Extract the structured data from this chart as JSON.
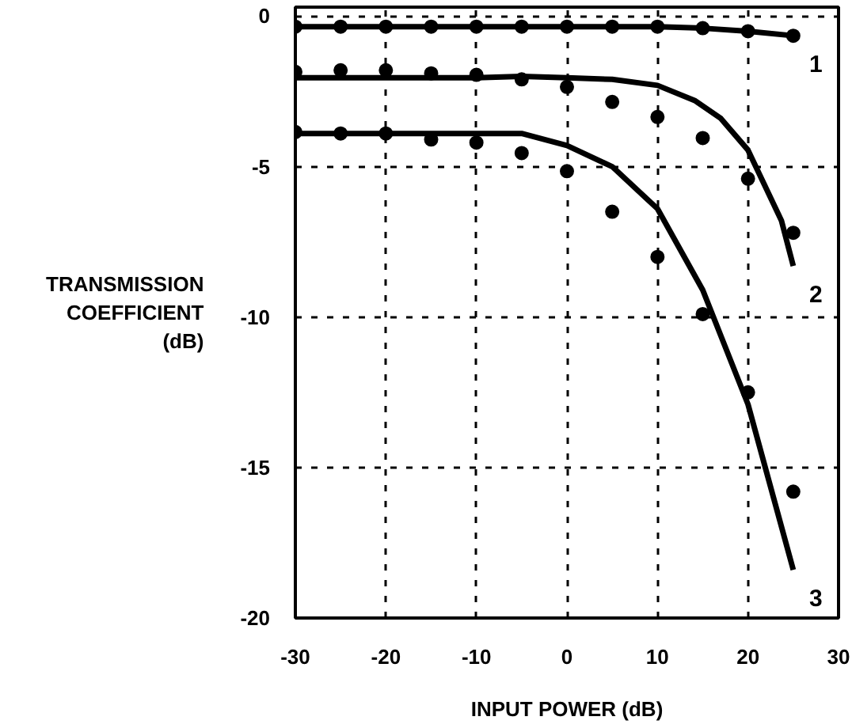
{
  "chart_data": {
    "type": "line",
    "xlabel": "INPUT POWER (dB)",
    "ylabel": "TRANSMISSION COEFFICIENT (dB)",
    "xlim": [
      -30,
      30
    ],
    "ylim": [
      -20,
      0.3
    ],
    "xticks": [
      -30,
      -20,
      -10,
      0,
      10,
      20,
      30
    ],
    "yticks": [
      0,
      -5,
      -10,
      -15,
      -20
    ],
    "grid": true,
    "legend": false,
    "series": [
      {
        "name": "1",
        "color": "#000000",
        "x": [
          -30,
          -20,
          -10,
          0,
          10,
          15,
          20,
          25
        ],
        "values": [
          -0.35,
          -0.35,
          -0.35,
          -0.35,
          -0.35,
          -0.4,
          -0.5,
          -0.65
        ]
      },
      {
        "name": "2",
        "color": "#000000",
        "x": [
          -30,
          -20,
          -10,
          -5,
          0,
          5,
          10,
          14.1,
          17,
          20,
          23.7,
          25
        ],
        "values": [
          -2.05,
          -2.05,
          -2.05,
          -2.0,
          -2.05,
          -2.1,
          -2.3,
          -2.8,
          -3.4,
          -4.45,
          -6.8,
          -8.3
        ]
      },
      {
        "name": "3",
        "color": "#000000",
        "x": [
          -30,
          -20,
          -10,
          -5,
          0,
          5,
          10,
          15,
          20,
          25
        ],
        "values": [
          -3.9,
          -3.9,
          -3.9,
          -3.9,
          -4.3,
          -5.0,
          -6.4,
          -9.1,
          -12.9,
          -18.4
        ]
      },
      {
        "type": "scatter",
        "color": "#000000",
        "marker": "circle",
        "x": [
          -30,
          -25,
          -20,
          -15,
          -10,
          -5,
          0,
          5,
          10,
          15,
          20,
          25
        ],
        "values": [
          -0.35,
          -0.35,
          -0.35,
          -0.35,
          -0.35,
          -0.35,
          -0.35,
          -0.35,
          -0.35,
          -0.4,
          -0.5,
          -0.65
        ]
      },
      {
        "type": "scatter",
        "color": "#000000",
        "marker": "circle",
        "x": [
          -30,
          -25,
          -20,
          -15,
          -10,
          -5,
          0,
          5,
          10,
          15,
          20,
          25
        ],
        "values": [
          -1.85,
          -1.8,
          -1.8,
          -1.9,
          -1.95,
          -2.1,
          -2.35,
          -2.85,
          -3.35,
          -4.05,
          -5.4,
          -7.2
        ]
      },
      {
        "type": "scatter",
        "color": "#000000",
        "marker": "circle",
        "x": [
          -30,
          -25,
          -20,
          -15,
          -10,
          -5,
          0,
          5,
          10,
          15,
          20,
          25
        ],
        "values": [
          -3.85,
          -3.9,
          -3.9,
          -4.1,
          -4.2,
          -4.55,
          -5.15,
          -6.5,
          -8.0,
          -9.9,
          -12.5,
          -15.8
        ]
      }
    ]
  }
}
